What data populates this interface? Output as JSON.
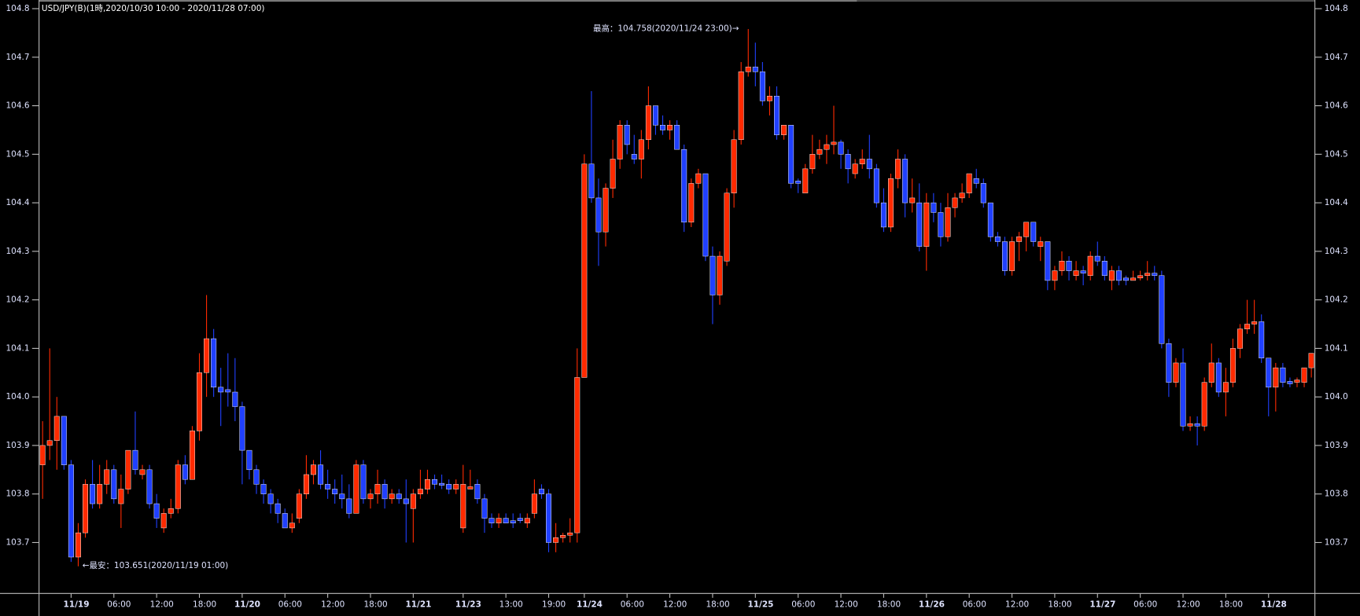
{
  "chart_data": {
    "type": "candlestick",
    "title": "USD/JPY(B)(1時,2020/10/30 10:00 - 2020/11/28 07:00)",
    "annotations": [
      {
        "text": "最高：104.758(2020/11/24 23:00)→"
      },
      {
        "text": "←最安：103.651(2020/11/19 01:00)"
      }
    ],
    "up_color": "#ff2a00",
    "down_color": "#2040ff",
    "ylim": [
      103.595,
      104.8125
    ],
    "yticks": [
      103.7,
      103.8,
      103.9,
      {
        "value": 104,
        "label": "104.0"
      },
      104.1,
      104.2,
      104.3,
      104.4,
      104.5,
      104.6,
      104.7,
      104.8
    ],
    "categories": [
      null,
      null,
      null,
      null,
      "11/19",
      null,
      null,
      null,
      null,
      null,
      "06:00",
      null,
      null,
      null,
      null,
      null,
      "12:00",
      null,
      null,
      null,
      null,
      null,
      "18:00",
      null,
      null,
      null,
      null,
      null,
      "11/20",
      null,
      null,
      null,
      null,
      null,
      "06:00",
      null,
      null,
      null,
      null,
      null,
      "12:00",
      null,
      null,
      null,
      null,
      null,
      "18:00",
      null,
      null,
      null,
      null,
      null,
      "11/21",
      null,
      null,
      null,
      null,
      null,
      null,
      "11/23",
      null,
      null,
      null,
      null,
      null,
      "13:00",
      null,
      null,
      null,
      null,
      null,
      "19:00",
      null,
      null,
      null,
      null,
      "11/24",
      null,
      null,
      null,
      null,
      null,
      "06:00",
      null,
      null,
      null,
      null,
      null,
      "12:00",
      null,
      null,
      null,
      null,
      null,
      "18:00",
      null,
      null,
      null,
      null,
      null,
      "11/25",
      null,
      null,
      null,
      null,
      null,
      "06:00",
      null,
      null,
      null,
      null,
      null,
      "12:00",
      null,
      null,
      null,
      null,
      null,
      "18:00",
      null,
      null,
      null,
      null,
      null,
      "11/26",
      null,
      null,
      null,
      null,
      null,
      "06:00",
      null,
      null,
      null,
      null,
      null,
      "12:00",
      null,
      null,
      null,
      null,
      null,
      "18:00",
      null,
      null,
      null,
      null,
      null,
      "11/27",
      null,
      null,
      null,
      null,
      null,
      "06:00",
      null,
      null,
      null,
      null,
      null,
      "12:00",
      null,
      null,
      null,
      null,
      null,
      "18:00",
      null,
      null,
      null,
      null,
      null,
      "11/28",
      null,
      null,
      null,
      null,
      null,
      null
    ],
    "open": [
      103.86,
      103.9,
      103.91,
      103.96,
      103.86,
      103.67,
      103.72,
      103.82,
      103.78,
      103.82,
      103.85,
      103.78,
      103.81,
      103.89,
      103.84,
      103.85,
      103.78,
      103.73,
      103.76,
      103.77,
      103.86,
      103.83,
      103.93,
      104.05,
      104.12,
      104.02,
      104.015,
      104.01,
      103.98,
      103.89,
      103.85,
      103.82,
      103.8,
      103.78,
      103.76,
      103.73,
      103.75,
      103.8,
      103.84,
      103.86,
      103.82,
      103.81,
      103.8,
      103.79,
      103.76,
      103.86,
      103.79,
      103.8,
      103.82,
      103.79,
      103.8,
      103.79,
      103.77,
      103.8,
      103.81,
      103.83,
      103.822,
      103.82,
      103.81,
      103.73,
      103.81,
      103.82,
      103.79,
      103.75,
      103.74,
      103.75,
      103.745,
      103.75,
      103.74,
      103.76,
      103.81,
      103.8,
      103.7,
      103.71,
      103.715,
      103.72,
      104.04,
      104.48,
      104.41,
      104.34,
      104.43,
      104.49,
      104.56,
      104.5,
      104.49,
      104.53,
      104.6,
      104.56,
      104.55,
      104.56,
      104.51,
      104.36,
      104.44,
      104.46,
      104.29,
      104.21,
      104.28,
      104.42,
      104.53,
      104.67,
      104.68,
      104.67,
      104.61,
      104.62,
      104.54,
      104.56,
      104.445,
      104.42,
      104.47,
      104.5,
      104.51,
      104.52,
      104.525,
      104.5,
      104.46,
      104.48,
      104.49,
      104.47,
      104.4,
      104.35,
      104.45,
      104.49,
      104.4,
      104.4,
      104.31,
      104.4,
      104.38,
      104.33,
      104.39,
      104.41,
      104.42,
      104.45,
      104.44,
      104.4,
      104.33,
      104.32,
      104.26,
      104.32,
      104.33,
      104.36,
      104.31,
      104.32,
      104.24,
      104.26,
      104.28,
      104.25,
      104.26,
      104.25,
      104.29,
      104.28,
      104.24,
      104.26,
      104.245,
      104.24,
      104.245,
      104.25,
      104.255,
      104.25,
      104.11,
      104.03,
      104.07,
      103.94,
      103.945,
      103.94,
      104.03,
      104.07,
      104.01,
      104.03,
      104.1,
      104.14,
      104.15,
      104.155,
      104.08,
      104.02,
      104.06,
      104.032,
      104.03,
      104.03,
      104.06
    ],
    "high": [
      103.95,
      104.1,
      104.0,
      103.96,
      103.87,
      103.74,
      103.83,
      103.87,
      103.86,
      103.87,
      103.86,
      103.84,
      103.89,
      103.97,
      103.86,
      103.86,
      103.8,
      103.77,
      103.79,
      103.87,
      103.88,
      103.94,
      104.09,
      104.21,
      104.14,
      104.06,
      104.09,
      104.08,
      103.99,
      103.89,
      103.86,
      103.83,
      103.81,
      103.79,
      103.77,
      103.76,
      103.81,
      103.88,
      103.87,
      103.89,
      103.85,
      103.83,
      103.84,
      103.82,
      103.87,
      103.87,
      103.81,
      103.85,
      103.83,
      103.81,
      103.81,
      103.83,
      103.81,
      103.85,
      103.85,
      103.84,
      103.84,
      103.83,
      103.83,
      103.86,
      103.85,
      103.83,
      103.8,
      103.76,
      103.76,
      103.76,
      103.76,
      103.76,
      103.76,
      103.83,
      103.82,
      103.81,
      103.74,
      103.72,
      103.75,
      104.1,
      104.5,
      104.63,
      104.45,
      104.44,
      104.53,
      104.57,
      104.57,
      104.54,
      104.55,
      104.64,
      104.6,
      104.58,
      104.57,
      104.57,
      104.52,
      104.45,
      104.47,
      104.46,
      104.31,
      104.3,
      104.43,
      104.55,
      104.69,
      104.758,
      104.73,
      104.69,
      104.64,
      104.64,
      104.56,
      104.56,
      104.45,
      104.48,
      104.54,
      104.53,
      104.54,
      104.6,
      104.53,
      104.51,
      104.49,
      104.51,
      104.54,
      104.48,
      104.43,
      104.46,
      104.51,
      104.5,
      104.45,
      104.44,
      104.42,
      104.42,
      104.4,
      104.42,
      104.42,
      104.44,
      104.46,
      104.47,
      104.45,
      104.4,
      104.34,
      104.33,
      104.33,
      104.34,
      104.36,
      104.36,
      104.33,
      104.32,
      104.27,
      104.3,
      104.29,
      104.28,
      104.27,
      104.3,
      104.32,
      104.29,
      104.27,
      104.27,
      104.25,
      104.26,
      104.26,
      104.28,
      104.27,
      104.26,
      104.12,
      104.08,
      104.1,
      103.96,
      103.96,
      104.04,
      104.11,
      104.08,
      104.06,
      104.12,
      104.15,
      104.2,
      104.2,
      104.17,
      104.08,
      104.07,
      104.07,
      104.04,
      104.04,
      104.06,
      104.09
    ],
    "low": [
      103.79,
      103.87,
      103.85,
      103.85,
      103.66,
      103.651,
      103.71,
      103.77,
      103.77,
      103.8,
      103.78,
      103.73,
      103.8,
      103.84,
      103.83,
      103.77,
      103.73,
      103.72,
      103.75,
      103.76,
      103.82,
      103.83,
      103.91,
      104.0,
      104.0,
      103.94,
      103.98,
      103.95,
      103.82,
      103.83,
      103.8,
      103.78,
      103.76,
      103.74,
      103.73,
      103.72,
      103.74,
      103.79,
      103.82,
      103.81,
      103.79,
      103.78,
      103.77,
      103.75,
      103.76,
      103.78,
      103.77,
      103.78,
      103.77,
      103.78,
      103.78,
      103.7,
      103.7,
      103.79,
      103.8,
      103.81,
      103.81,
      103.8,
      103.8,
      103.72,
      103.81,
      103.78,
      103.72,
      103.73,
      103.73,
      103.74,
      103.73,
      103.74,
      103.73,
      103.75,
      103.79,
      103.68,
      103.68,
      103.7,
      103.7,
      103.7,
      104.04,
      104.4,
      104.27,
      104.31,
      104.41,
      104.47,
      104.5,
      104.48,
      104.45,
      104.51,
      104.54,
      104.54,
      104.53,
      104.51,
      104.34,
      104.35,
      104.43,
      104.28,
      104.15,
      104.19,
      104.27,
      104.39,
      104.52,
      104.66,
      104.64,
      104.6,
      104.58,
      104.53,
      104.53,
      104.43,
      104.42,
      104.42,
      104.46,
      104.49,
      104.48,
      104.5,
      104.47,
      104.44,
      104.45,
      104.47,
      104.45,
      104.39,
      104.34,
      104.34,
      104.43,
      104.37,
      104.38,
      104.3,
      104.26,
      104.36,
      104.31,
      104.32,
      104.37,
      104.4,
      104.41,
      104.43,
      104.39,
      104.32,
      104.31,
      104.25,
      104.25,
      104.28,
      104.3,
      104.31,
      104.28,
      104.22,
      104.22,
      104.25,
      104.24,
      104.24,
      104.23,
      104.24,
      104.27,
      104.24,
      104.22,
      104.23,
      104.23,
      104.24,
      104.24,
      104.24,
      104.24,
      104.1,
      104.0,
      104.02,
      103.93,
      103.93,
      103.9,
      103.93,
      104.02,
      104.0,
      103.96,
      104.02,
      104.08,
      104.13,
      104.13,
      104.07,
      103.96,
      103.97,
      104.02,
      104.02,
      104.02,
      104.02,
      104.04
    ],
    "close": [
      103.9,
      103.91,
      103.96,
      103.86,
      103.67,
      103.72,
      103.82,
      103.78,
      103.82,
      103.85,
      103.79,
      103.81,
      103.89,
      103.85,
      103.85,
      103.78,
      103.75,
      103.76,
      103.77,
      103.86,
      103.83,
      103.93,
      104.05,
      104.12,
      104.02,
      104.01,
      104.01,
      103.98,
      103.89,
      103.85,
      103.82,
      103.8,
      103.78,
      103.76,
      103.73,
      103.74,
      103.8,
      103.84,
      103.86,
      103.82,
      103.81,
      103.8,
      103.79,
      103.76,
      103.86,
      103.79,
      103.8,
      103.82,
      103.79,
      103.8,
      103.79,
      103.78,
      103.8,
      103.81,
      103.83,
      103.82,
      103.818,
      103.81,
      103.82,
      103.82,
      103.815,
      103.79,
      103.75,
      103.74,
      103.75,
      103.74,
      103.74,
      103.745,
      103.75,
      103.8,
      103.8,
      103.7,
      103.71,
      103.715,
      103.72,
      104.04,
      104.48,
      104.41,
      104.34,
      104.43,
      104.49,
      104.56,
      104.52,
      104.49,
      104.53,
      104.6,
      104.56,
      104.55,
      104.56,
      104.51,
      104.36,
      104.44,
      104.46,
      104.29,
      104.21,
      104.29,
      104.42,
      104.53,
      104.67,
      104.68,
      104.67,
      104.61,
      104.62,
      104.54,
      104.56,
      104.44,
      104.44,
      104.47,
      104.5,
      104.51,
      104.52,
      104.525,
      104.5,
      104.47,
      104.48,
      104.49,
      104.47,
      104.4,
      104.35,
      104.45,
      104.49,
      104.4,
      104.41,
      104.31,
      104.4,
      104.38,
      104.33,
      104.39,
      104.41,
      104.42,
      104.46,
      104.44,
      104.4,
      104.33,
      104.32,
      104.26,
      104.32,
      104.33,
      104.36,
      104.32,
      104.32,
      104.24,
      104.26,
      104.28,
      104.26,
      104.26,
      104.255,
      104.29,
      104.28,
      104.25,
      104.26,
      104.24,
      104.24,
      104.245,
      104.25,
      104.255,
      104.25,
      104.11,
      104.03,
      104.07,
      103.94,
      103.945,
      103.94,
      104.03,
      104.07,
      104.01,
      104.03,
      104.1,
      104.14,
      104.15,
      104.155,
      104.08,
      104.02,
      104.06,
      104.03,
      104.027,
      104.035,
      104.06,
      104.09
    ]
  }
}
